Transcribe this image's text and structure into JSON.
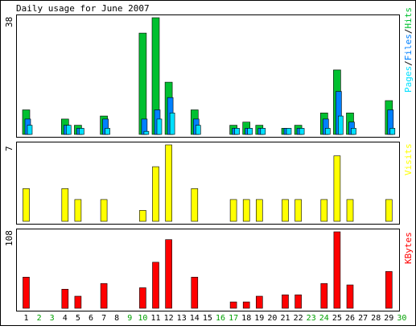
{
  "title": "Daily usage for June 2007",
  "colors": {
    "background": "#ffffff",
    "panel_border": "#000000",
    "hits": "#00c030",
    "files": "#0080ff",
    "pages": "#00e0ff",
    "visits": "#ffff00",
    "kbytes": "#ff0000",
    "weekday_label": "#000000",
    "weekend_label": "#00a000"
  },
  "chart_data": [
    {
      "type": "bar",
      "panel": "hits-files-pages",
      "title": "Daily usage for June 2007",
      "ylabel_parts": [
        {
          "text": "Pages",
          "color": "#00e0ff"
        },
        {
          "text": "/",
          "color": "#000000"
        },
        {
          "text": "Files",
          "color": "#0080ff"
        },
        {
          "text": "/",
          "color": "#000000"
        },
        {
          "text": "Hits",
          "color": "#00c030"
        }
      ],
      "max_label": "38",
      "ylim": [
        0,
        38
      ],
      "categories": [
        "1",
        "2",
        "3",
        "4",
        "5",
        "6",
        "7",
        "8",
        "9",
        "10",
        "11",
        "12",
        "13",
        "14",
        "15",
        "16",
        "17",
        "18",
        "19",
        "20",
        "21",
        "22",
        "23",
        "24",
        "25",
        "26",
        "27",
        "28",
        "29",
        "30"
      ],
      "series": [
        {
          "name": "Hits",
          "color": "#00c030",
          "values": [
            8,
            0,
            0,
            5,
            3,
            0,
            6,
            0,
            0,
            33,
            38,
            17,
            0,
            8,
            0,
            0,
            3,
            4,
            3,
            0,
            2,
            3,
            0,
            7,
            21,
            7,
            0,
            0,
            11,
            0
          ]
        },
        {
          "name": "Files",
          "color": "#0080ff",
          "values": [
            5,
            0,
            0,
            3,
            2,
            0,
            5,
            0,
            0,
            5,
            8,
            12,
            0,
            5,
            0,
            0,
            2,
            2,
            2,
            0,
            2,
            2,
            0,
            5,
            14,
            4,
            0,
            0,
            8,
            0
          ]
        },
        {
          "name": "Pages",
          "color": "#00e0ff",
          "values": [
            3,
            0,
            0,
            3,
            2,
            0,
            2,
            0,
            0,
            1,
            5,
            7,
            0,
            3,
            0,
            0,
            2,
            2,
            2,
            0,
            2,
            2,
            0,
            2,
            6,
            2,
            0,
            0,
            2,
            0
          ]
        }
      ]
    },
    {
      "type": "bar",
      "panel": "visits",
      "ylabel": "Visits",
      "max_label": "7",
      "ylim": [
        0,
        7
      ],
      "categories": [
        "1",
        "2",
        "3",
        "4",
        "5",
        "6",
        "7",
        "8",
        "9",
        "10",
        "11",
        "12",
        "13",
        "14",
        "15",
        "16",
        "17",
        "18",
        "19",
        "20",
        "21",
        "22",
        "23",
        "24",
        "25",
        "26",
        "27",
        "28",
        "29",
        "30"
      ],
      "series": [
        {
          "name": "Visits",
          "color": "#ffff00",
          "values": [
            3,
            0,
            0,
            3,
            2,
            0,
            2,
            0,
            0,
            1,
            5,
            7,
            0,
            3,
            0,
            0,
            2,
            2,
            2,
            0,
            2,
            2,
            0,
            2,
            6,
            2,
            0,
            0,
            2,
            0
          ]
        }
      ]
    },
    {
      "type": "bar",
      "panel": "kbytes",
      "ylabel": "KBytes",
      "max_label": "108",
      "ylim": [
        0,
        108
      ],
      "categories": [
        "1",
        "2",
        "3",
        "4",
        "5",
        "6",
        "7",
        "8",
        "9",
        "10",
        "11",
        "12",
        "13",
        "14",
        "15",
        "16",
        "17",
        "18",
        "19",
        "20",
        "21",
        "22",
        "23",
        "24",
        "25",
        "26",
        "27",
        "28",
        "29",
        "30"
      ],
      "series": [
        {
          "name": "KBytes",
          "color": "#ff0000",
          "values": [
            44,
            0,
            0,
            27,
            17,
            0,
            35,
            0,
            0,
            29,
            65,
            97,
            0,
            44,
            0,
            0,
            9,
            9,
            17,
            0,
            19,
            19,
            0,
            35,
            108,
            33,
            0,
            0,
            52,
            0
          ]
        }
      ]
    }
  ],
  "x_labels": [
    {
      "day": "1",
      "weekend": false
    },
    {
      "day": "2",
      "weekend": true
    },
    {
      "day": "3",
      "weekend": true
    },
    {
      "day": "4",
      "weekend": false
    },
    {
      "day": "5",
      "weekend": false
    },
    {
      "day": "6",
      "weekend": false
    },
    {
      "day": "7",
      "weekend": false
    },
    {
      "day": "8",
      "weekend": false
    },
    {
      "day": "9",
      "weekend": true
    },
    {
      "day": "10",
      "weekend": true
    },
    {
      "day": "11",
      "weekend": false
    },
    {
      "day": "12",
      "weekend": false
    },
    {
      "day": "13",
      "weekend": false
    },
    {
      "day": "14",
      "weekend": false
    },
    {
      "day": "15",
      "weekend": false
    },
    {
      "day": "16",
      "weekend": true
    },
    {
      "day": "17",
      "weekend": true
    },
    {
      "day": "18",
      "weekend": false
    },
    {
      "day": "19",
      "weekend": false
    },
    {
      "day": "20",
      "weekend": false
    },
    {
      "day": "21",
      "weekend": false
    },
    {
      "day": "22",
      "weekend": false
    },
    {
      "day": "23",
      "weekend": true
    },
    {
      "day": "24",
      "weekend": true
    },
    {
      "day": "25",
      "weekend": false
    },
    {
      "day": "26",
      "weekend": false
    },
    {
      "day": "27",
      "weekend": false
    },
    {
      "day": "28",
      "weekend": false
    },
    {
      "day": "29",
      "weekend": false
    },
    {
      "day": "30",
      "weekend": true
    }
  ]
}
